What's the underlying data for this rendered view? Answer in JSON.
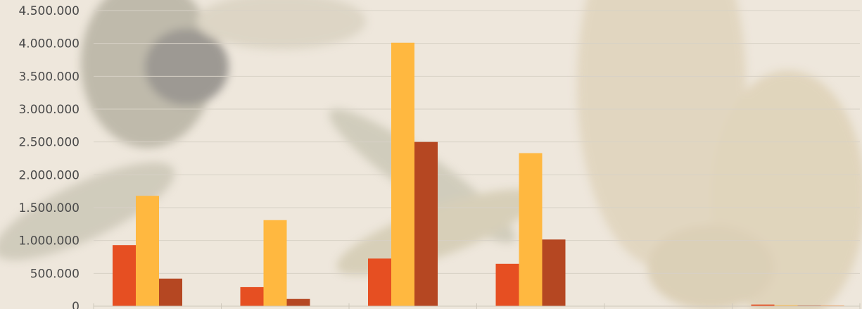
{
  "chart_data": {
    "type": "bar",
    "categories": [
      "",
      "",
      "",
      "",
      "",
      ""
    ],
    "series": [
      {
        "values": [
          930000,
          290000,
          725000,
          645000,
          0,
          25000
        ],
        "color": "#e64f22"
      },
      {
        "values": [
          1680000,
          1310000,
          4010000,
          2330000,
          0,
          15000
        ],
        "color": "#ffb840"
      },
      {
        "values": [
          420000,
          110000,
          2500000,
          1015000,
          0,
          10000
        ],
        "color": "#b54722"
      },
      {
        "values": [
          0,
          0,
          0,
          0,
          0,
          10000
        ],
        "color": "#ff8427"
      }
    ],
    "ylim": [
      0,
      4500000
    ],
    "yticks": [
      0,
      500000,
      1000000,
      1500000,
      2000000,
      2500000,
      3000000,
      3500000,
      4000000,
      4500000
    ],
    "ytick_labels": [
      "0",
      "500.000",
      "1.000.000",
      "1.500.000",
      "2.000.000",
      "2.500.000",
      "3.000.000",
      "3.500.000",
      "4.000.000",
      "4.500.000"
    ],
    "grid": true,
    "xlabel": "",
    "ylabel": ""
  }
}
